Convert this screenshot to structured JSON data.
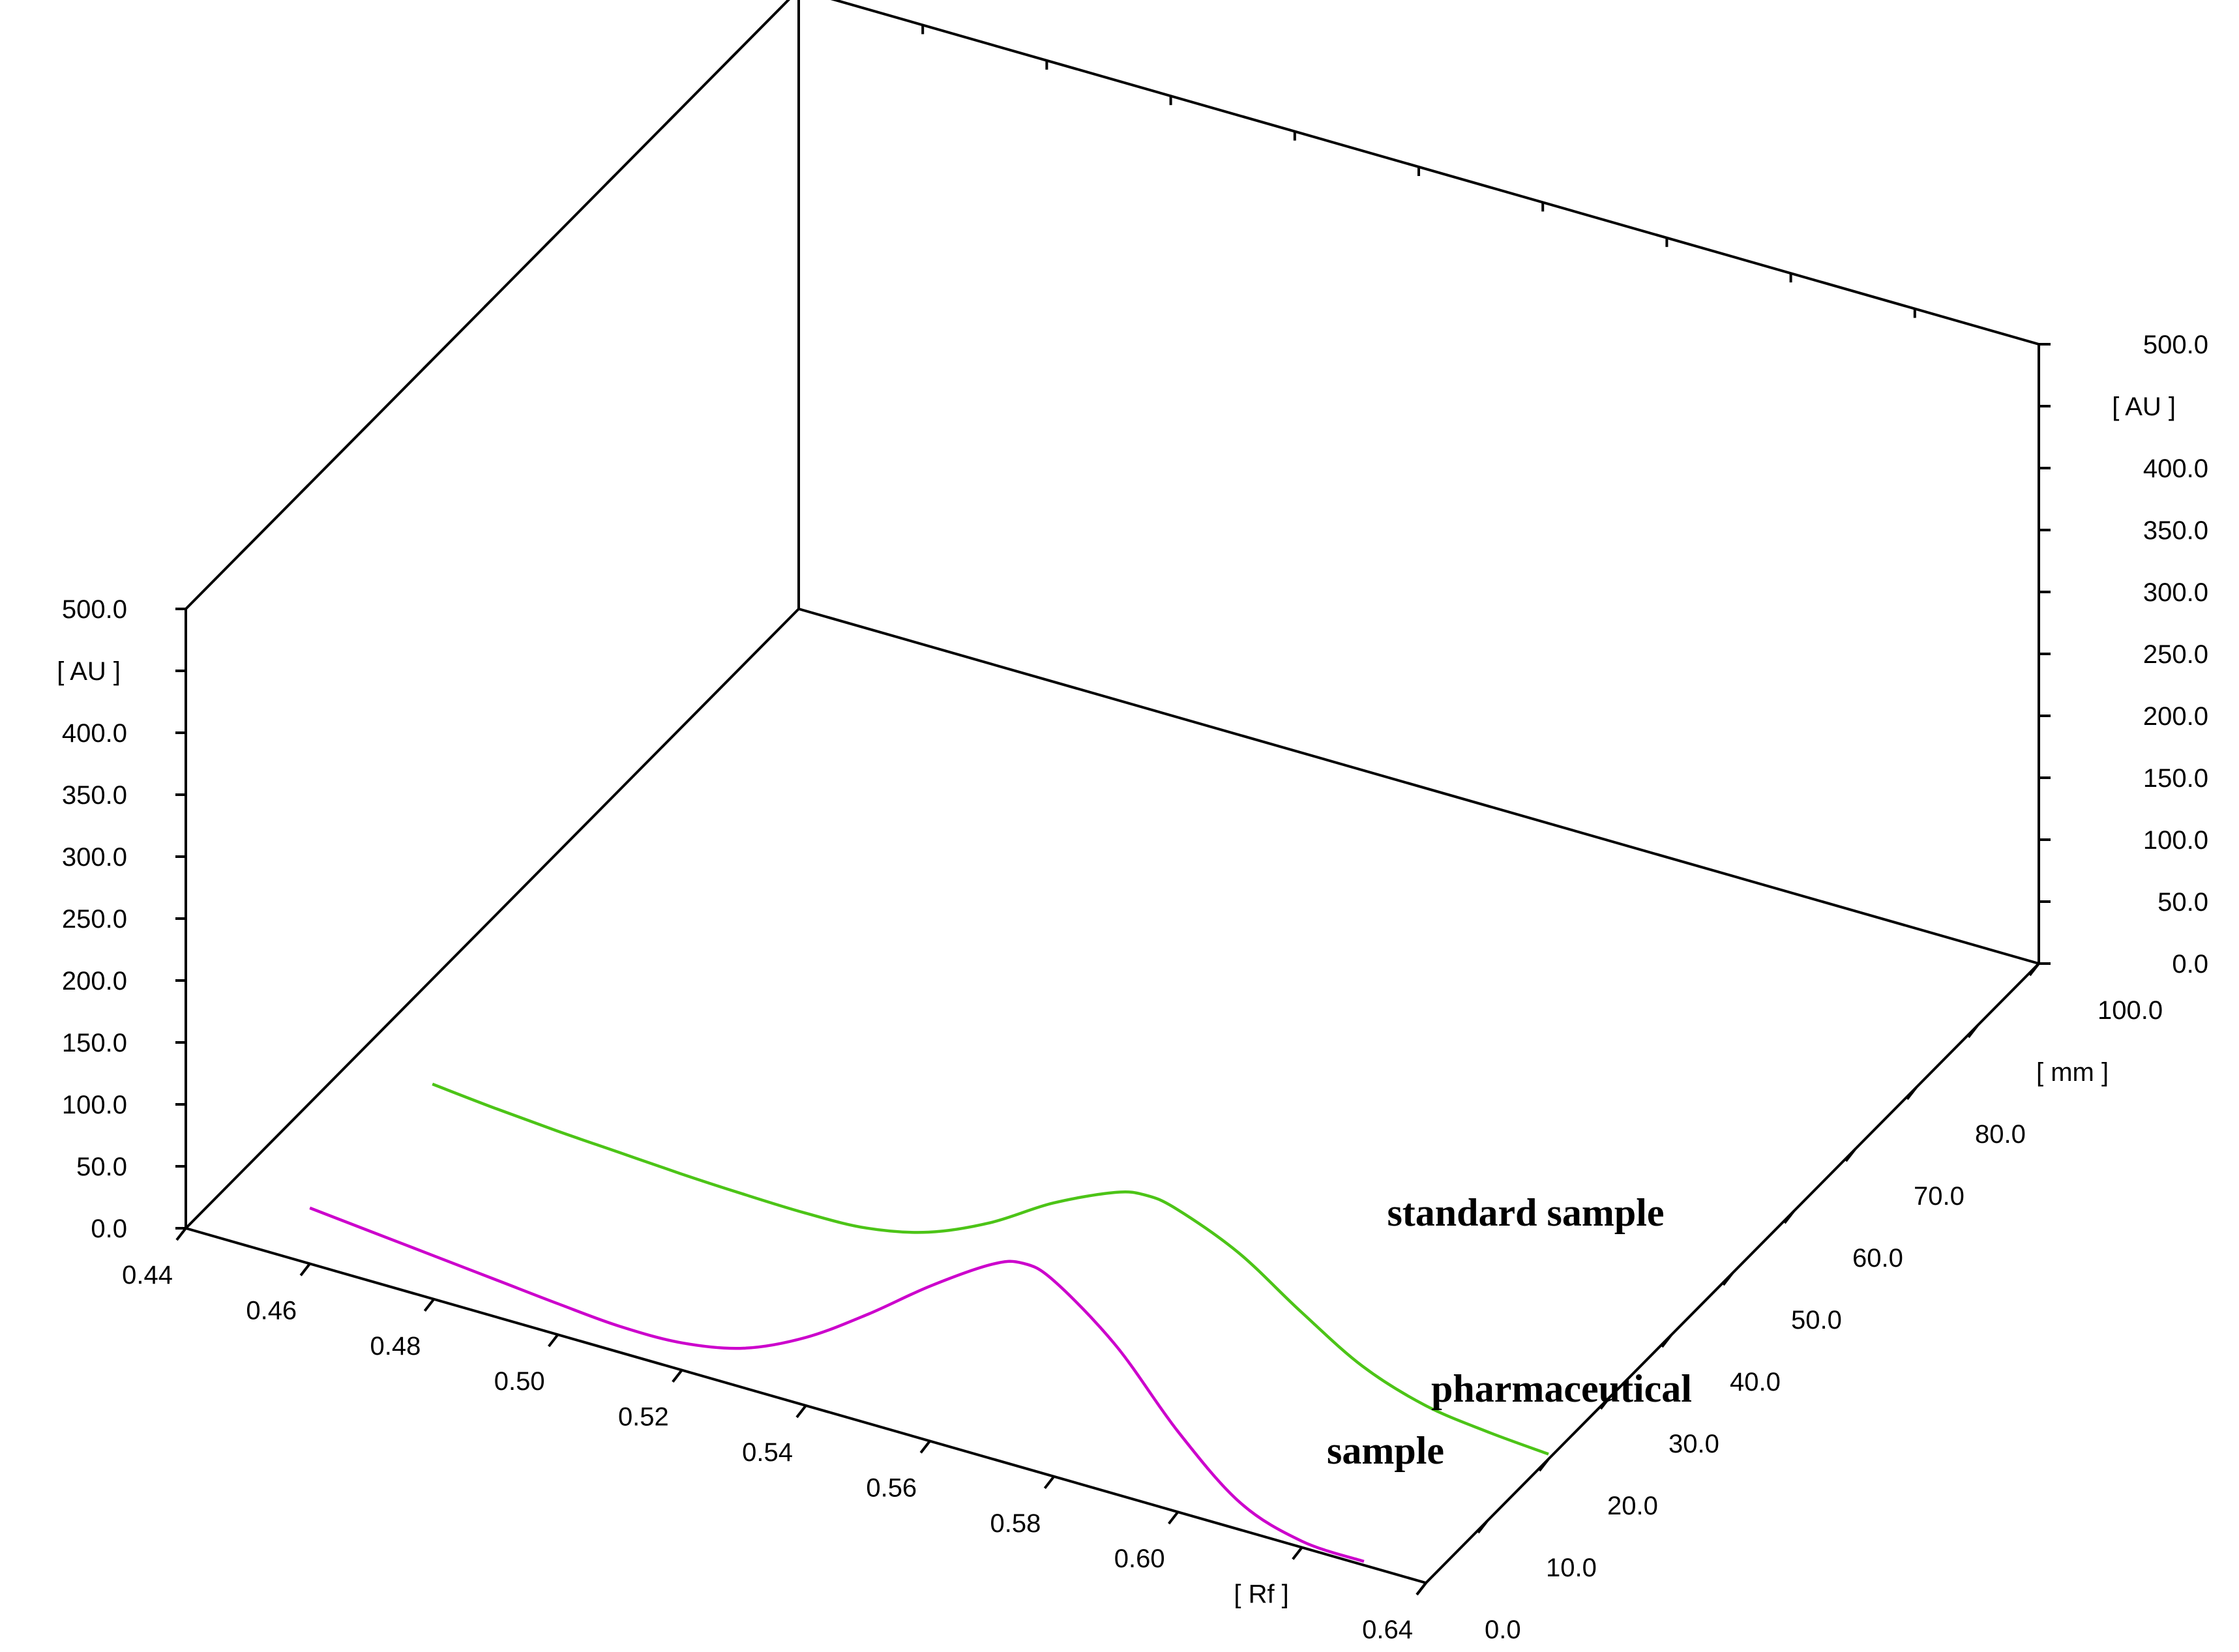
{
  "chart_data": {
    "type": "line",
    "projection": "3d",
    "grid": false,
    "x_axis": {
      "label": "[ Rf ]",
      "range": [
        0.44,
        0.64
      ],
      "ticks": [
        "0.44",
        "0.46",
        "0.48",
        "0.50",
        "0.52",
        "0.54",
        "0.56",
        "0.58",
        "0.60",
        "0.64"
      ]
    },
    "y_axis": {
      "label": "[ AU ]",
      "range": [
        0,
        500
      ],
      "ticks": [
        "0.0",
        "50.0",
        "100.0",
        "150.0",
        "200.0",
        "250.0",
        "300.0",
        "350.0",
        "400.0",
        "500.0"
      ]
    },
    "z_axis": {
      "label": "[ mm ]",
      "range": [
        0,
        100
      ],
      "ticks": [
        "0.0",
        "10.0",
        "20.0",
        "30.0",
        "40.0",
        "50.0",
        "60.0",
        "70.0",
        "80.0",
        "100.0"
      ]
    },
    "series": [
      {
        "name": "standard sample",
        "color": "#4cc417",
        "track_mm": 20,
        "points": [
          [
            0.46,
            45
          ],
          [
            0.47,
            40
          ],
          [
            0.48,
            36
          ],
          [
            0.49,
            33
          ],
          [
            0.5,
            30
          ],
          [
            0.51,
            28
          ],
          [
            0.52,
            27
          ],
          [
            0.53,
            29
          ],
          [
            0.54,
            40
          ],
          [
            0.55,
            62
          ],
          [
            0.56,
            92
          ],
          [
            0.57,
            115
          ],
          [
            0.575,
            120
          ],
          [
            0.58,
            116
          ],
          [
            0.59,
            95
          ],
          [
            0.6,
            62
          ],
          [
            0.61,
            32
          ],
          [
            0.62,
            15
          ],
          [
            0.63,
            8
          ],
          [
            0.64,
            4
          ]
        ]
      },
      {
        "name": "pharmaceutical sample",
        "color": "#cc00cc",
        "track_mm": 0,
        "points": [
          [
            0.46,
            45
          ],
          [
            0.47,
            40
          ],
          [
            0.48,
            35
          ],
          [
            0.49,
            30
          ],
          [
            0.5,
            25
          ],
          [
            0.51,
            21
          ],
          [
            0.52,
            22
          ],
          [
            0.53,
            32
          ],
          [
            0.54,
            55
          ],
          [
            0.55,
            88
          ],
          [
            0.56,
            125
          ],
          [
            0.57,
            157
          ],
          [
            0.575,
            165
          ],
          [
            0.58,
            158
          ],
          [
            0.59,
            120
          ],
          [
            0.6,
            65
          ],
          [
            0.61,
            22
          ],
          [
            0.62,
            5
          ],
          [
            0.63,
            3
          ]
        ]
      }
    ]
  }
}
